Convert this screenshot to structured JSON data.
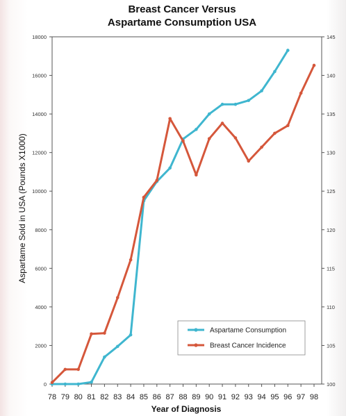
{
  "chart_data": {
    "type": "line",
    "title_lines": [
      "Breast Cancer Versus",
      "Aspartame Consumption USA"
    ],
    "xlabel": "Year of Diagnosis",
    "ylabel": "Aspartame Sold in USA (Pounds X1000)",
    "categories": [
      "78",
      "79",
      "80",
      "81",
      "82",
      "83",
      "84",
      "85",
      "86",
      "87",
      "88",
      "89",
      "90",
      "91",
      "92",
      "93",
      "94",
      "95",
      "96",
      "97",
      "98"
    ],
    "ylim": [
      0,
      18000
    ],
    "yticks": [
      "0",
      "2000",
      "4000",
      "6000",
      "8000",
      "10000",
      "12000",
      "14000",
      "16000",
      "18000"
    ],
    "y2lim": [
      100,
      145
    ],
    "y2ticks": [
      "100",
      "105",
      "110",
      "115",
      "120",
      "125",
      "130",
      "135",
      "140",
      "145"
    ],
    "series": [
      {
        "name": "Aspartame Consumption",
        "axis": "left",
        "color": "#3fb6cf",
        "values": [
          0,
          0,
          0,
          100,
          1400,
          1950,
          2550,
          9500,
          10500,
          11200,
          12700,
          13200,
          14000,
          14500,
          14500,
          14700,
          15200,
          16200,
          17300,
          null,
          null
        ]
      },
      {
        "name": "Breast Cancer Incidence",
        "axis": "right",
        "color": "#d5573b",
        "values": [
          100.2,
          101.9,
          101.9,
          106.5,
          106.6,
          111.2,
          116.1,
          124.2,
          126.4,
          134.4,
          131.5,
          127.1,
          131.8,
          133.8,
          131.9,
          128.9,
          130.7,
          132.5,
          133.5,
          137.7,
          141.3
        ]
      }
    ]
  }
}
